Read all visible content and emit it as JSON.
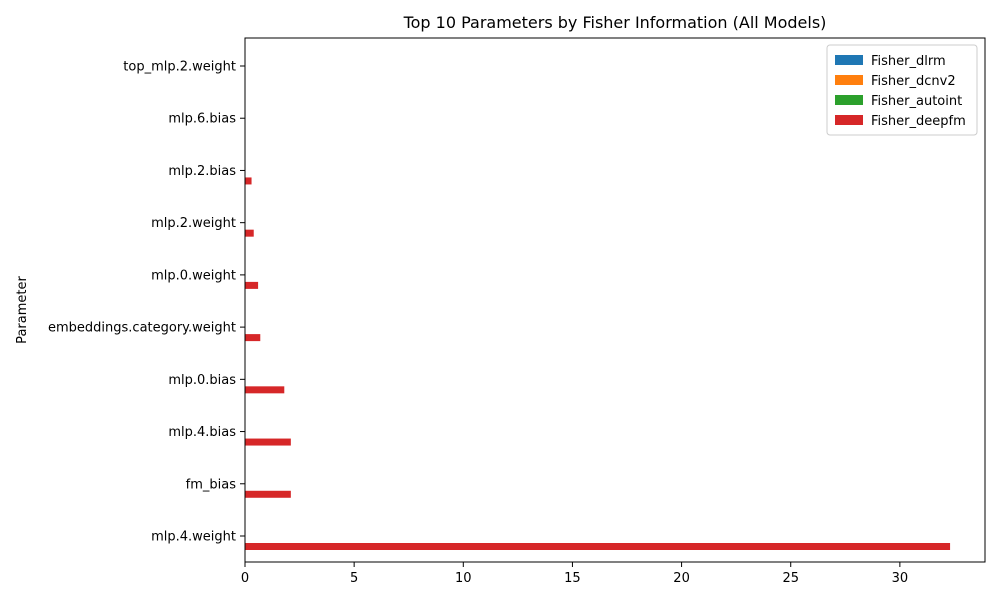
{
  "chart_data": {
    "type": "bar",
    "orientation": "horizontal",
    "title": "Top 10 Parameters by Fisher Information (All Models)",
    "xlabel": "",
    "ylabel": "Parameter",
    "xlim": [
      0,
      33.9
    ],
    "xticks": [
      0,
      5,
      10,
      15,
      20,
      25,
      30
    ],
    "grid": false,
    "legend_position": "top-right",
    "categories": [
      "mlp.4.weight",
      "fm_bias",
      "mlp.4.bias",
      "mlp.0.bias",
      "embeddings.category.weight",
      "mlp.0.weight",
      "mlp.2.weight",
      "mlp.2.bias",
      "mlp.6.bias",
      "top_mlp.2.weight"
    ],
    "series": [
      {
        "name": "Fisher_dlrm",
        "color": "#1f77b4",
        "values": [
          0,
          0,
          0,
          0,
          0,
          0,
          0,
          0,
          0,
          0
        ]
      },
      {
        "name": "Fisher_dcnv2",
        "color": "#ff7f0e",
        "values": [
          0,
          0,
          0,
          0,
          0,
          0,
          0,
          0,
          0,
          0
        ]
      },
      {
        "name": "Fisher_autoint",
        "color": "#2ca02c",
        "values": [
          0,
          0,
          0,
          0,
          0,
          0,
          0,
          0,
          0,
          0
        ]
      },
      {
        "name": "Fisher_deepfm",
        "color": "#d62728",
        "values": [
          32.3,
          2.1,
          2.1,
          1.8,
          0.7,
          0.6,
          0.4,
          0.3,
          0.0,
          0.0
        ]
      }
    ]
  }
}
